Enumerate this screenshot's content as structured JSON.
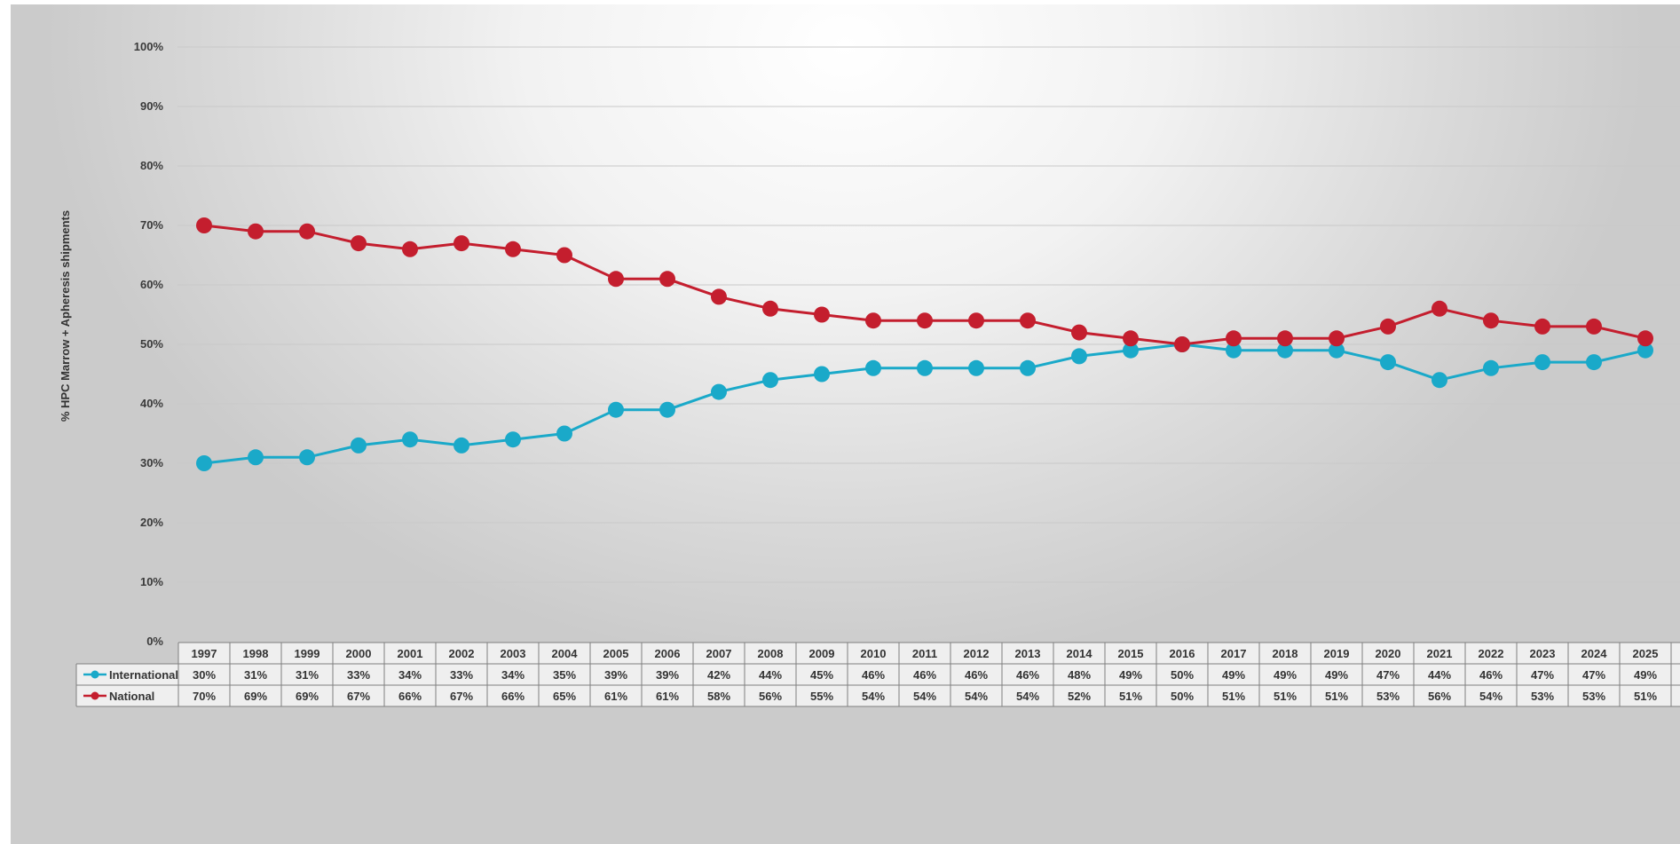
{
  "chart_data": {
    "type": "line",
    "ylabel": "% HPC Marrow + Apheresis shipments",
    "ylim": [
      0,
      100
    ],
    "ytick_labels": [
      "0%",
      "10%",
      "20%",
      "30%",
      "40%",
      "50%",
      "60%",
      "70%",
      "80%",
      "90%",
      "100%"
    ],
    "grid": true,
    "legend": "data-table-left",
    "categories": [
      "1997",
      "1998",
      "1999",
      "2000",
      "2001",
      "2002",
      "2003",
      "2004",
      "2005",
      "2006",
      "2007",
      "2008",
      "2009",
      "2010",
      "2011",
      "2012",
      "2013",
      "2014",
      "2015",
      "2016",
      "2017",
      "2018",
      "2019",
      "2020",
      "2021",
      "2022",
      "2023",
      "2024",
      "2025"
    ],
    "series": [
      {
        "name": "International",
        "color": "#1aa9c9",
        "values": [
          30,
          31,
          31,
          33,
          34,
          33,
          34,
          35,
          39,
          39,
          42,
          44,
          45,
          46,
          46,
          46,
          46,
          48,
          49,
          50,
          49,
          49,
          49,
          47,
          44,
          46,
          47,
          47,
          49
        ],
        "labels": [
          "30%",
          "31%",
          "31%",
          "33%",
          "34%",
          "33%",
          "34%",
          "35%",
          "39%",
          "39%",
          "42%",
          "44%",
          "45%",
          "46%",
          "46%",
          "46%",
          "46%",
          "48%",
          "49%",
          "50%",
          "49%",
          "49%",
          "49%",
          "47%",
          "44%",
          "46%",
          "47%",
          "47%",
          "49%"
        ]
      },
      {
        "name": "National",
        "color": "#c41e2e",
        "values": [
          70,
          69,
          69,
          67,
          66,
          67,
          66,
          65,
          61,
          61,
          58,
          56,
          55,
          54,
          54,
          54,
          54,
          52,
          51,
          50,
          51,
          51,
          51,
          53,
          56,
          54,
          53,
          53,
          51
        ],
        "labels": [
          "70%",
          "69%",
          "69%",
          "67%",
          "66%",
          "67%",
          "66%",
          "65%",
          "61%",
          "61%",
          "58%",
          "56%",
          "55%",
          "54%",
          "54%",
          "54%",
          "54%",
          "52%",
          "51%",
          "50%",
          "51%",
          "51%",
          "51%",
          "53%",
          "56%",
          "54%",
          "53%",
          "53%",
          "51%"
        ]
      }
    ]
  }
}
